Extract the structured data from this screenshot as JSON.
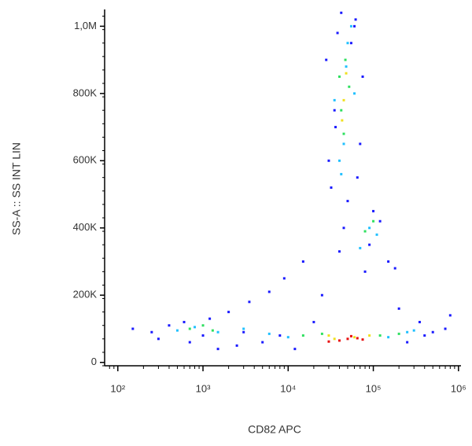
{
  "chart_data": {
    "type": "scatter",
    "xlabel": "CD82 APC",
    "ylabel": "SS-A :: SS INT LIN",
    "xscale": "log",
    "xlim": [
      70,
      1070000
    ],
    "xticks": [
      {
        "value": 100,
        "label": "10²"
      },
      {
        "value": 1000,
        "label": "10³"
      },
      {
        "value": 10000,
        "label": "10⁴"
      },
      {
        "value": 100000,
        "label": "10⁵"
      },
      {
        "value": 1000000,
        "label": "10⁶"
      }
    ],
    "ylim": [
      -10000,
      1050000
    ],
    "yticks": [
      0,
      {
        "value": 200000,
        "label": "200K"
      },
      {
        "value": 400000,
        "label": "400K"
      },
      {
        "value": 600000,
        "label": "600K"
      },
      {
        "value": 800000,
        "label": "800K"
      },
      {
        "value": 1000000,
        "label": "1,0M"
      }
    ],
    "series": [
      {
        "color": "#1a1aff",
        "x": [
          150,
          250,
          400,
          700,
          1200,
          2000,
          3500,
          6000,
          9000,
          15000,
          200000,
          350000,
          500000,
          800000,
          300,
          1500,
          5000,
          12000,
          25000,
          30000,
          35000,
          38000,
          60000,
          70000,
          75000,
          28000,
          32000,
          65000,
          55000,
          42000,
          90000,
          120000,
          150000,
          100000,
          40000,
          80000,
          3000,
          8000,
          20000,
          2500,
          1000,
          600,
          250000,
          400000,
          180000,
          700000,
          50000,
          45000,
          62000,
          36000
        ],
        "y": [
          100000,
          90000,
          110000,
          60000,
          130000,
          150000,
          180000,
          210000,
          250000,
          300000,
          160000,
          120000,
          90000,
          140000,
          70000,
          40000,
          60000,
          40000,
          200000,
          600000,
          750000,
          980000,
          1000000,
          650000,
          850000,
          900000,
          520000,
          550000,
          950000,
          1040000,
          350000,
          420000,
          300000,
          450000,
          330000,
          270000,
          90000,
          80000,
          120000,
          50000,
          80000,
          120000,
          60000,
          80000,
          280000,
          100000,
          480000,
          400000,
          1020000,
          700000
        ]
      },
      {
        "color": "#20c0ff",
        "x": [
          500,
          800,
          1500,
          3000,
          6000,
          150000,
          250000,
          40000,
          45000,
          50000,
          55000,
          48000,
          42000,
          60000,
          90000,
          110000,
          70000,
          10000,
          300000,
          35000
        ],
        "y": [
          95000,
          105000,
          90000,
          100000,
          85000,
          75000,
          90000,
          600000,
          650000,
          950000,
          1000000,
          880000,
          560000,
          800000,
          400000,
          380000,
          340000,
          75000,
          95000,
          780000
        ]
      },
      {
        "color": "#30e060",
        "x": [
          700,
          1000,
          1300,
          15000,
          25000,
          120000,
          200000,
          42000,
          47000,
          52000,
          45000,
          40000,
          80000,
          100000
        ],
        "y": [
          100000,
          110000,
          95000,
          80000,
          85000,
          80000,
          85000,
          750000,
          900000,
          820000,
          680000,
          850000,
          390000,
          420000
        ]
      },
      {
        "color": "#f0e020",
        "x": [
          35000,
          60000,
          90000,
          45000,
          48000,
          43000,
          30000
        ],
        "y": [
          70000,
          75000,
          80000,
          780000,
          860000,
          720000,
          80000
        ]
      },
      {
        "color": "#e81010",
        "x": [
          40000,
          50000,
          65000,
          75000,
          30000,
          55000
        ],
        "y": [
          65000,
          70000,
          72000,
          68000,
          62000,
          78000
        ]
      }
    ]
  }
}
